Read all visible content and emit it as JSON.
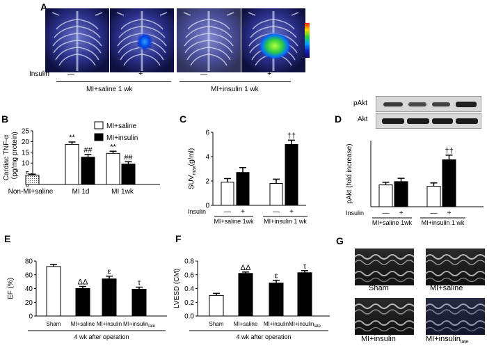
{
  "panel_a": {
    "letter": "A",
    "row_label": "Insulin",
    "signs": [
      "—",
      "+",
      "—",
      "+"
    ],
    "group_labels": [
      "MI+saline 1 wk",
      "MI+insulin 1 wk"
    ],
    "colorbar": [
      "#ff2000",
      "#ffd800",
      "#30d040",
      "#00a0ff",
      "#1020c0",
      "#100060"
    ]
  },
  "chart_data": [
    {
      "id": "B",
      "type": "bar",
      "letter": "B",
      "ylabel_lines": [
        "Cardiac TNF-α",
        "（pg/mg protein)"
      ],
      "ylim": [
        0,
        25
      ],
      "yticks": [
        0,
        5,
        10,
        15,
        20,
        25
      ],
      "categories": [
        "Non-MI+saline",
        "MI 1d",
        "MI 1wk"
      ],
      "bars": [
        {
          "cat": 0,
          "value": 4.3,
          "err": 0.5,
          "style": "dotted",
          "mark": ""
        },
        {
          "cat": 1,
          "value": 18.7,
          "err": 1.1,
          "style": "white",
          "mark": "**"
        },
        {
          "cat": 1,
          "value": 12.7,
          "err": 1.3,
          "style": "black",
          "mark": "##"
        },
        {
          "cat": 2,
          "value": 14.5,
          "err": 1.0,
          "style": "white",
          "mark": "**"
        },
        {
          "cat": 2,
          "value": 9.5,
          "err": 1.1,
          "style": "black",
          "mark": "##"
        }
      ],
      "legend": [
        {
          "label": "MI+saline",
          "style": "white"
        },
        {
          "label": "MI+insulin",
          "style": "black"
        }
      ]
    },
    {
      "id": "C",
      "type": "bar",
      "letter": "C",
      "ylabel": "SUVmax(g/ml)",
      "ylim": [
        0,
        6
      ],
      "yticks": [
        0,
        2,
        4,
        6
      ],
      "row_label": "Insulin",
      "bars": [
        {
          "group": 0,
          "value": 1.9,
          "err": 0.3,
          "style": "white",
          "mark": "",
          "sign": "—"
        },
        {
          "group": 0,
          "value": 2.7,
          "err": 0.4,
          "style": "black",
          "mark": "",
          "sign": "+"
        },
        {
          "group": 1,
          "value": 1.8,
          "err": 0.35,
          "style": "white",
          "mark": "",
          "sign": "—"
        },
        {
          "group": 1,
          "value": 5.0,
          "err": 0.35,
          "style": "black",
          "mark": "††",
          "sign": "+"
        }
      ],
      "group_labels": [
        "MI+saline 1wk",
        "MI+insulin 1 wk"
      ]
    },
    {
      "id": "D",
      "type": "bar",
      "letter": "D",
      "ylabel": "pAkt (fold increase)",
      "ylim": [
        0,
        1.0
      ],
      "yticks": [],
      "row_label": "Insulin",
      "blot_labels": [
        "pAkt",
        "Akt"
      ],
      "bars": [
        {
          "group": 0,
          "value": 0.33,
          "err": 0.04,
          "style": "white",
          "mark": "",
          "sign": "—"
        },
        {
          "group": 0,
          "value": 0.38,
          "err": 0.05,
          "style": "black",
          "mark": "",
          "sign": "+"
        },
        {
          "group": 1,
          "value": 0.31,
          "err": 0.05,
          "style": "white",
          "mark": "",
          "sign": "—"
        },
        {
          "group": 1,
          "value": 0.71,
          "err": 0.07,
          "style": "black",
          "mark": "††",
          "sign": "+"
        }
      ],
      "group_labels": [
        "MI+saline 1wk",
        "MI+insulin 1 wk"
      ]
    },
    {
      "id": "E",
      "type": "bar",
      "letter": "E",
      "ylabel": "EF (%)",
      "ylim": [
        0,
        80
      ],
      "yticks": [
        0,
        20,
        40,
        60,
        80
      ],
      "categories": [
        "Sham",
        "MI+saline",
        "MI+insulin",
        "MI+insulin"
      ],
      "sub": [
        "",
        "",
        "",
        "late"
      ],
      "bars": [
        {
          "cat": 0,
          "value": 72,
          "err": 3,
          "style": "white",
          "mark": ""
        },
        {
          "cat": 1,
          "value": 40,
          "err": 3,
          "style": "black",
          "mark": "ΔΔ"
        },
        {
          "cat": 2,
          "value": 54,
          "err": 4,
          "style": "black",
          "mark": "ε"
        },
        {
          "cat": 3,
          "value": 39,
          "err": 3,
          "style": "black",
          "mark": "τ"
        }
      ],
      "xcaption": "4 wk after operation"
    },
    {
      "id": "F",
      "type": "bar",
      "letter": "F",
      "ylabel": "LVESD (CM)",
      "ylim": [
        0,
        0.8
      ],
      "yticks": [
        0.0,
        0.2,
        0.4,
        0.6,
        0.8
      ],
      "categories": [
        "Sham",
        "MI+saline",
        "MI+insulin",
        "MI+insulin"
      ],
      "sub": [
        "",
        "",
        "",
        "late"
      ],
      "bars": [
        {
          "cat": 0,
          "value": 0.3,
          "err": 0.03,
          "style": "white",
          "mark": ""
        },
        {
          "cat": 1,
          "value": 0.62,
          "err": 0.02,
          "style": "black",
          "mark": "ΔΔ"
        },
        {
          "cat": 2,
          "value": 0.48,
          "err": 0.04,
          "style": "black",
          "mark": "ε"
        },
        {
          "cat": 3,
          "value": 0.63,
          "err": 0.03,
          "style": "black",
          "mark": "τ"
        }
      ],
      "xcaption": "4 wk after operation"
    }
  ],
  "panel_g": {
    "letter": "G",
    "captions": [
      "Sham",
      "MI+saline",
      "MI+insulin",
      "MI+insulin"
    ],
    "sub": [
      "",
      "",
      "",
      "late"
    ]
  }
}
